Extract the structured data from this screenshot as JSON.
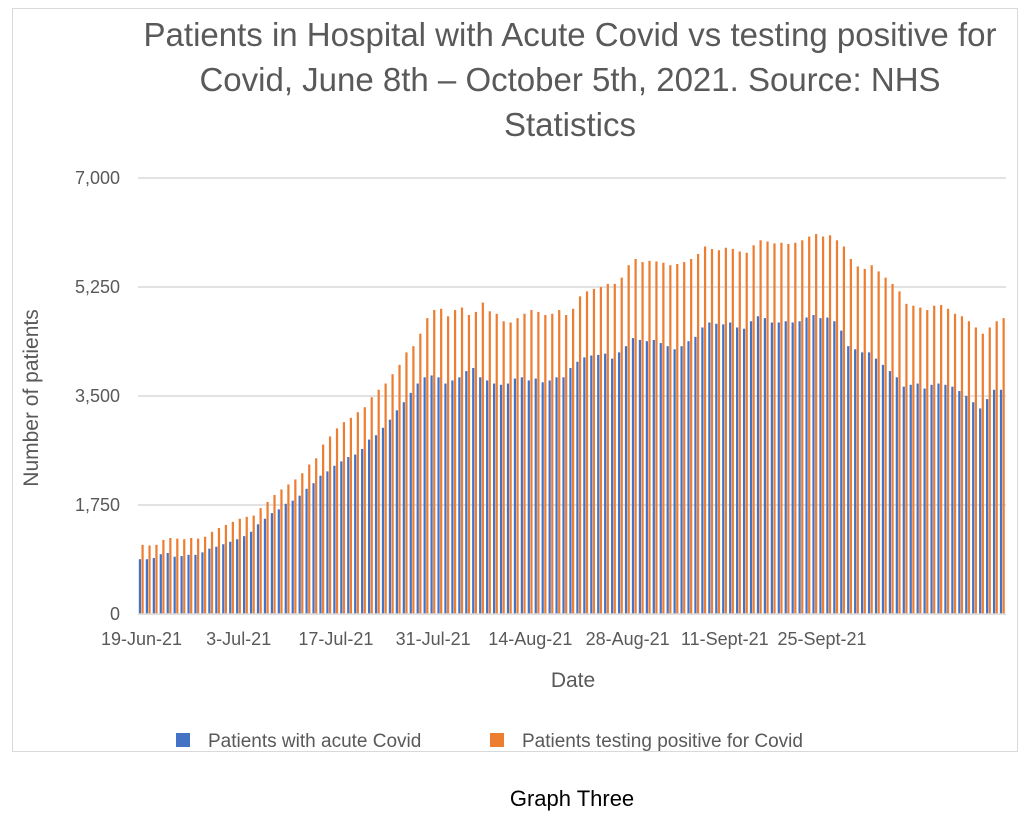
{
  "chart_data": {
    "type": "bar",
    "title": "Patients in Hospital with Acute Covid vs testing positive for Covid, June 8th – October 5th, 2021. Source: NHS Statistics",
    "xlabel": "Date",
    "ylabel": "Number of patients",
    "ylim": [
      0,
      7000
    ],
    "yticks": [
      "0",
      "1,750",
      "3,500",
      "5,250",
      "7,000"
    ],
    "grid": true,
    "legend_position": "bottom",
    "x_tick_labels": [
      "19-Jun-21",
      "3-Jul-21",
      "17-Jul-21",
      "31-Jul-21",
      "14-Aug-21",
      "28-Aug-21",
      "11-Sept-21",
      "25-Sept-21"
    ],
    "series": [
      {
        "name": "Patients with acute Covid",
        "color": "#4472C4",
        "values": [
          880,
          880,
          900,
          960,
          980,
          920,
          930,
          950,
          950,
          990,
          1050,
          1080,
          1120,
          1160,
          1200,
          1250,
          1320,
          1440,
          1530,
          1620,
          1680,
          1770,
          1820,
          1900,
          2010,
          2100,
          2220,
          2290,
          2380,
          2450,
          2520,
          2560,
          2650,
          2800,
          2870,
          2990,
          3120,
          3270,
          3400,
          3550,
          3700,
          3800,
          3830,
          3800,
          3700,
          3750,
          3800,
          3900,
          3950,
          3800,
          3750,
          3700,
          3680,
          3700,
          3780,
          3800,
          3750,
          3780,
          3720,
          3750,
          3800,
          3800,
          3950,
          4050,
          4120,
          4150,
          4160,
          4180,
          4100,
          4200,
          4300,
          4430,
          4400,
          4380,
          4400,
          4350,
          4300,
          4250,
          4300,
          4380,
          4450,
          4600,
          4680,
          4660,
          4650,
          4680,
          4600,
          4580,
          4700,
          4780,
          4750,
          4680,
          4680,
          4700,
          4680,
          4700,
          4760,
          4800,
          4750,
          4760,
          4700,
          4550,
          4300,
          4250,
          4200,
          4200,
          4100,
          4000,
          3900,
          3800,
          3650,
          3680,
          3700,
          3620,
          3680,
          3700,
          3680,
          3650,
          3580,
          3500,
          3400,
          3300,
          3450,
          3600,
          3600
        ]
      },
      {
        "name": "Patients testing positive for Covid",
        "color": "#ED7D31",
        "values": [
          1110,
          1100,
          1110,
          1190,
          1220,
          1210,
          1200,
          1220,
          1210,
          1240,
          1320,
          1380,
          1430,
          1480,
          1530,
          1560,
          1580,
          1700,
          1800,
          1910,
          2000,
          2080,
          2160,
          2260,
          2400,
          2500,
          2720,
          2850,
          2980,
          3080,
          3150,
          3240,
          3320,
          3480,
          3600,
          3700,
          3850,
          4000,
          4200,
          4300,
          4500,
          4750,
          4880,
          4900,
          4780,
          4880,
          4920,
          4800,
          4850,
          5000,
          4860,
          4820,
          4700,
          4680,
          4750,
          4820,
          4880,
          4850,
          4800,
          4820,
          4880,
          4800,
          4900,
          5100,
          5180,
          5220,
          5250,
          5300,
          5300,
          5400,
          5600,
          5700,
          5650,
          5670,
          5660,
          5640,
          5600,
          5620,
          5650,
          5700,
          5780,
          5900,
          5860,
          5840,
          5880,
          5860,
          5820,
          5800,
          5920,
          6000,
          5980,
          5950,
          5960,
          5940,
          5960,
          6000,
          6060,
          6100,
          6060,
          6080,
          6000,
          5900,
          5700,
          5580,
          5540,
          5600,
          5500,
          5400,
          5300,
          5180,
          4980,
          4950,
          4920,
          4880,
          4950,
          4960,
          4900,
          4820,
          4780,
          4700,
          4600,
          4500,
          4600,
          4700,
          4750
        ]
      }
    ]
  },
  "caption": "Graph Three"
}
